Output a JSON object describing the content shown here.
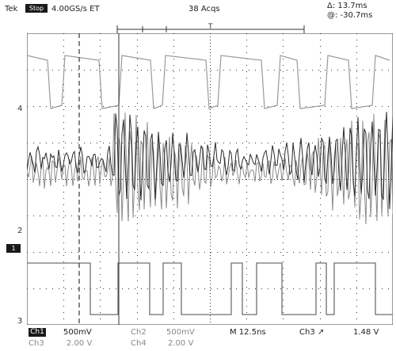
{
  "header": {
    "brand": "Tek",
    "run_state": "Stop",
    "sample_rate": "4.00GS/s ET",
    "acquisitions": "38 Acqs",
    "delta_readout": "Δ: 13.7ms",
    "at_readout": "@: -30.7ms"
  },
  "markers": {
    "ch4_level": "4",
    "ch2_level": "2",
    "ch1_level": "1",
    "ch3_level": "3"
  },
  "footer": {
    "ch1_label": "Ch1",
    "ch1_scale": "500mV",
    "ch2_label": "Ch2",
    "ch2_scale": "500mV",
    "ch3_label": "Ch3",
    "ch3_scale": "2.00 V",
    "ch4_label": "Ch4",
    "ch4_scale": "2.00 V",
    "timebase": "M 12.5ns",
    "trigger": "Ch3 ↗",
    "trigger_level": "1.48 V"
  },
  "colors": {
    "grid": "#333333",
    "ch4_trace": "#9a9a9a",
    "ch1_trace": "#2a2a2a",
    "ch2_trace": "#8a8a8a",
    "ch3_trace": "#6f6f6f"
  }
}
